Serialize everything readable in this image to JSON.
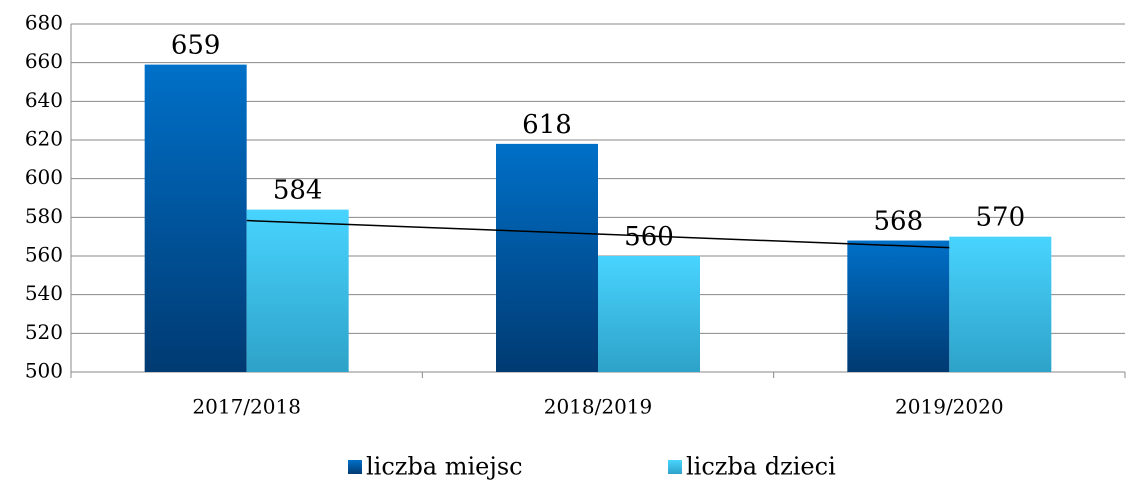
{
  "chart_data": {
    "type": "bar",
    "categories": [
      "2017/2018",
      "2018/2019",
      "2019/2020"
    ],
    "series": [
      {
        "name": "liczba miejsc",
        "color": "#0066b8",
        "values": [
          659,
          618,
          568
        ]
      },
      {
        "name": "liczba dzieci",
        "color": "#40ccf5",
        "values": [
          584,
          560,
          570
        ],
        "trendline": "linear"
      }
    ],
    "ylim": [
      500,
      680
    ],
    "yticks": [
      500,
      520,
      540,
      560,
      580,
      600,
      620,
      640,
      660,
      680
    ],
    "grid": true,
    "legend": "bottom"
  }
}
